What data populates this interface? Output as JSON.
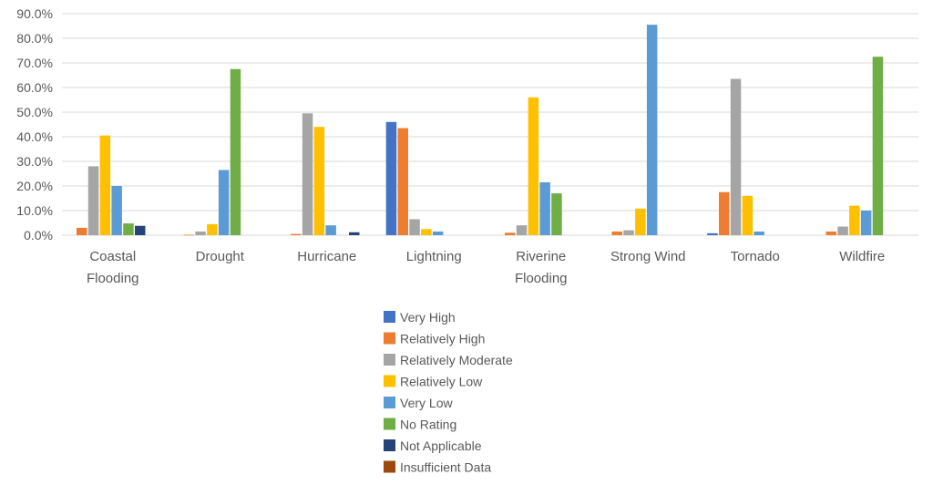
{
  "chart_data": {
    "type": "bar",
    "title": "",
    "xlabel": "",
    "ylabel": "",
    "ylim": [
      0,
      90
    ],
    "y_tick_step": 10,
    "y_tick_format": "percent_1dp",
    "grid": true,
    "legend_position": "bottom",
    "categories": [
      [
        "Coastal",
        "Flooding"
      ],
      [
        "Drought"
      ],
      [
        "Hurricane"
      ],
      [
        "Lightning"
      ],
      [
        "Riverine",
        "Flooding"
      ],
      [
        "Strong Wind"
      ],
      [
        "Tornado"
      ],
      [
        "Wildfire"
      ]
    ],
    "series": [
      {
        "name": "Very High",
        "color": "#4472c4",
        "values": [
          0,
          0,
          0,
          46.0,
          0,
          0,
          0.8,
          0
        ]
      },
      {
        "name": "Relatively High",
        "color": "#ed7d31",
        "values": [
          3.0,
          0.2,
          0.5,
          43.5,
          1.0,
          1.5,
          17.5,
          1.5
        ]
      },
      {
        "name": "Relatively Moderate",
        "color": "#a5a5a5",
        "values": [
          28.0,
          1.5,
          49.5,
          6.5,
          4.0,
          2.0,
          63.5,
          3.5
        ]
      },
      {
        "name": "Relatively Low",
        "color": "#ffc000",
        "values": [
          40.5,
          4.5,
          44.0,
          2.5,
          56.0,
          10.8,
          16.0,
          12.0
        ]
      },
      {
        "name": "Very Low",
        "color": "#5b9bd5",
        "values": [
          20.0,
          26.5,
          4.0,
          1.5,
          21.5,
          85.5,
          1.5,
          10.0
        ]
      },
      {
        "name": "No Rating",
        "color": "#70ad47",
        "values": [
          4.8,
          67.5,
          0,
          0,
          17.0,
          0,
          0,
          72.5
        ]
      },
      {
        "name": "Not Applicable",
        "color": "#264478",
        "values": [
          3.8,
          0,
          1.2,
          0,
          0,
          0,
          0,
          0
        ]
      },
      {
        "name": "Insufficient Data",
        "color": "#9e480e",
        "values": [
          0,
          0,
          0,
          0,
          0,
          0,
          0,
          0
        ]
      }
    ]
  }
}
